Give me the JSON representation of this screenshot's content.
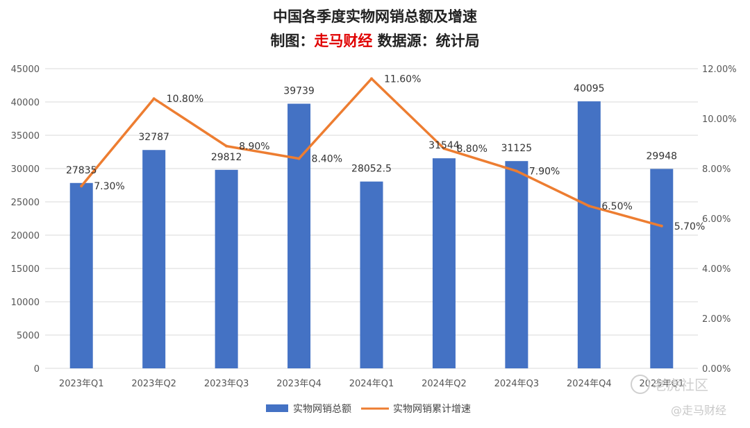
{
  "title_line1": "中国各季度实物网销总额及增速",
  "title_line2_prefix": "制图：",
  "title_line2_brand": "走马财经",
  "title_line2_suffix": " 数据源：统计局",
  "colors": {
    "bar": "#4472C4",
    "line": "#ED7D31",
    "brand": "#E00000",
    "grid": "#d9d9d9"
  },
  "chart_data": {
    "type": "bar",
    "categories": [
      "2023年Q1",
      "2023年Q2",
      "2023年Q3",
      "2023年Q4",
      "2024年Q1",
      "2024年Q2",
      "2024年Q3",
      "2024年Q4",
      "2025年Q1"
    ],
    "series": [
      {
        "name": "实物网销总额",
        "type": "bar",
        "axis": "left",
        "values": [
          27835,
          32787,
          29812,
          39739,
          28052.5,
          31544,
          31125,
          40095,
          29948
        ],
        "labels": [
          "27835",
          "32787",
          "29812",
          "39739",
          "28052.5",
          "31544",
          "31125",
          "40095",
          "29948"
        ]
      },
      {
        "name": "实物网销累计增速",
        "type": "line",
        "axis": "right",
        "values": [
          7.3,
          10.8,
          8.9,
          8.4,
          11.6,
          8.8,
          7.9,
          6.5,
          5.7
        ],
        "labels": [
          "7.30%",
          "10.80%",
          "8.90%",
          "8.40%",
          "11.60%",
          "8.80%",
          "7.90%",
          "6.50%",
          "5.70%"
        ]
      }
    ],
    "y_left": {
      "min": 0,
      "max": 45000,
      "step": 5000,
      "ticks": [
        "0",
        "5000",
        "10000",
        "15000",
        "20000",
        "25000",
        "30000",
        "35000",
        "40000",
        "45000"
      ]
    },
    "y_right": {
      "min": 0,
      "max": 12,
      "step": 2,
      "ticks": [
        "0.00%",
        "2.00%",
        "4.00%",
        "6.00%",
        "8.00%",
        "10.00%",
        "12.00%"
      ]
    },
    "grid": true,
    "legend_position": "bottom"
  },
  "watermarks": {
    "logo": "老虎社区",
    "handle": "@走马财经"
  }
}
